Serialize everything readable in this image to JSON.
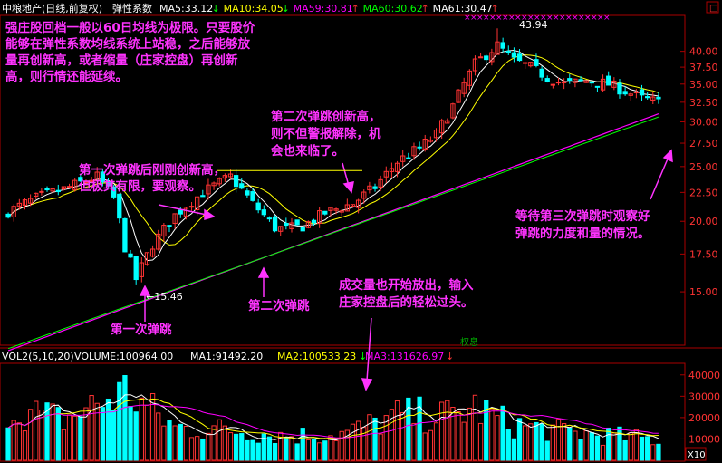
{
  "header": {
    "title": "中粮地产(日线,前复权)",
    "indicator_name": "弹性系数",
    "ma_readouts": [
      {
        "label": "MA5:33.12",
        "color": "#ffffff",
        "arrow": "↓"
      },
      {
        "label": "MA10:34.05",
        "color": "#ffff00",
        "arrow": "↓"
      },
      {
        "label": "MA59:30.81",
        "color": "#ff00ff",
        "arrow": "↑"
      },
      {
        "label": "MA60:30.62",
        "color": "#00ff00",
        "arrow": "↑"
      },
      {
        "label": "MA61:30.47",
        "color": "#ffffff",
        "arrow": "↑"
      }
    ]
  },
  "volume_header": {
    "label": "VOL2(5,10,20)",
    "volume": "VOLUME:100964.00",
    "ma1": "MA1:91492.20",
    "ma2": "MA2:100533.23",
    "ma3": "MA3:131626.97",
    "ma2_arrow": "↓",
    "ma3_arrow": "↓"
  },
  "annotations": {
    "top_lines": [
      "强庄股回档一般以60日均线为极限。只要股价",
      "能够在弹性系数均线系统上站稳，之后能够放",
      "量再创新高，或者缩量（庄家控盘）再创新",
      "高，则行情还能延续。"
    ],
    "second_rebound_lines": [
      "第二次弹跳创新高，",
      "则不但警报解除，机",
      "会也来临了。"
    ],
    "first_rebound_lines": [
      "第一次弹跳后刚刚创新高，",
      "但极其有限，要观察。"
    ],
    "third_lines": [
      "等待第三次弹跳时观察好",
      "弹跳的力度和量的情况。"
    ],
    "volume_lines": [
      "成交量也开始放出，输入",
      "庄家控盘后的轻松过头。"
    ],
    "first_bounce_label": "第一次弹跳",
    "second_bounce_label": "第二次弹跳",
    "high_label": "43.94",
    "low_label": "←15.46",
    "rights_label": "权息",
    "x10_label": "X10"
  },
  "colors": {
    "up": "#00ffff",
    "down": "#ff3333",
    "annotation": "#ff33ff",
    "axis": "#aa0000",
    "ma5": "#ffffff",
    "ma10": "#ffff00",
    "ma59": "#ff00ff",
    "ma60": "#00ff00"
  },
  "chart_data": [
    {
      "type": "candlestick",
      "y_ticks": [
        15.0,
        17.5,
        20.0,
        22.5,
        25.0,
        27.5,
        30.0,
        32.5,
        35.0,
        37.5,
        40.0
      ],
      "ylim": [
        12.2,
        45.8
      ],
      "log_scale": true,
      "key_levels": {
        "high": 43.94,
        "low": 15.46,
        "first_rebound_high": 24.6
      },
      "close_path": [
        [
          0,
          20.8
        ],
        [
          5,
          22.0
        ],
        [
          10,
          22.8
        ],
        [
          16,
          24.0
        ],
        [
          19,
          22.0
        ],
        [
          21,
          18.0
        ],
        [
          23,
          15.8
        ],
        [
          26,
          18.2
        ],
        [
          30,
          20.5
        ],
        [
          35,
          22.5
        ],
        [
          40,
          24.0
        ],
        [
          44,
          21.5
        ],
        [
          48,
          19.5
        ],
        [
          50,
          19.4
        ],
        [
          53,
          19.6
        ],
        [
          57,
          20.7
        ],
        [
          62,
          21.5
        ],
        [
          66,
          23.0
        ],
        [
          70,
          25.5
        ],
        [
          74,
          27.0
        ],
        [
          77,
          28.5
        ],
        [
          80,
          32.0
        ],
        [
          84,
          38.0
        ],
        [
          88,
          41.0
        ],
        [
          91,
          38.5
        ],
        [
          94,
          37.5
        ],
        [
          97,
          36.0
        ],
        [
          100,
          35.0
        ],
        [
          104,
          35.5
        ],
        [
          108,
          35.0
        ],
        [
          111,
          34.0
        ],
        [
          114,
          33.0
        ],
        [
          117,
          32.5
        ]
      ],
      "bars": 118,
      "ma59_range": [
        11.8,
        31.0
      ],
      "ma60_range": [
        11.9,
        30.6
      ],
      "last_values": {
        "ma5": 33.12,
        "ma10": 34.05,
        "ma59": 30.81,
        "ma60": 30.62,
        "ma61": 30.47
      }
    },
    {
      "type": "bar",
      "y_ticks": [
        10000,
        20000,
        30000,
        40000
      ],
      "ylim": [
        0,
        45000
      ],
      "unit_label": "X10",
      "volume_level": [
        [
          0,
          26000
        ],
        [
          10,
          20000
        ],
        [
          21,
          34000
        ],
        [
          23,
          30000
        ],
        [
          30,
          16000
        ],
        [
          40,
          15000
        ],
        [
          50,
          12000
        ],
        [
          60,
          13000
        ],
        [
          66,
          18000
        ],
        [
          70,
          22000
        ],
        [
          80,
          22000
        ],
        [
          84,
          26000
        ],
        [
          90,
          18000
        ],
        [
          100,
          14000
        ],
        [
          117,
          10096
        ]
      ],
      "ma_lines": [
        "MA1",
        "MA2",
        "MA3"
      ]
    }
  ]
}
